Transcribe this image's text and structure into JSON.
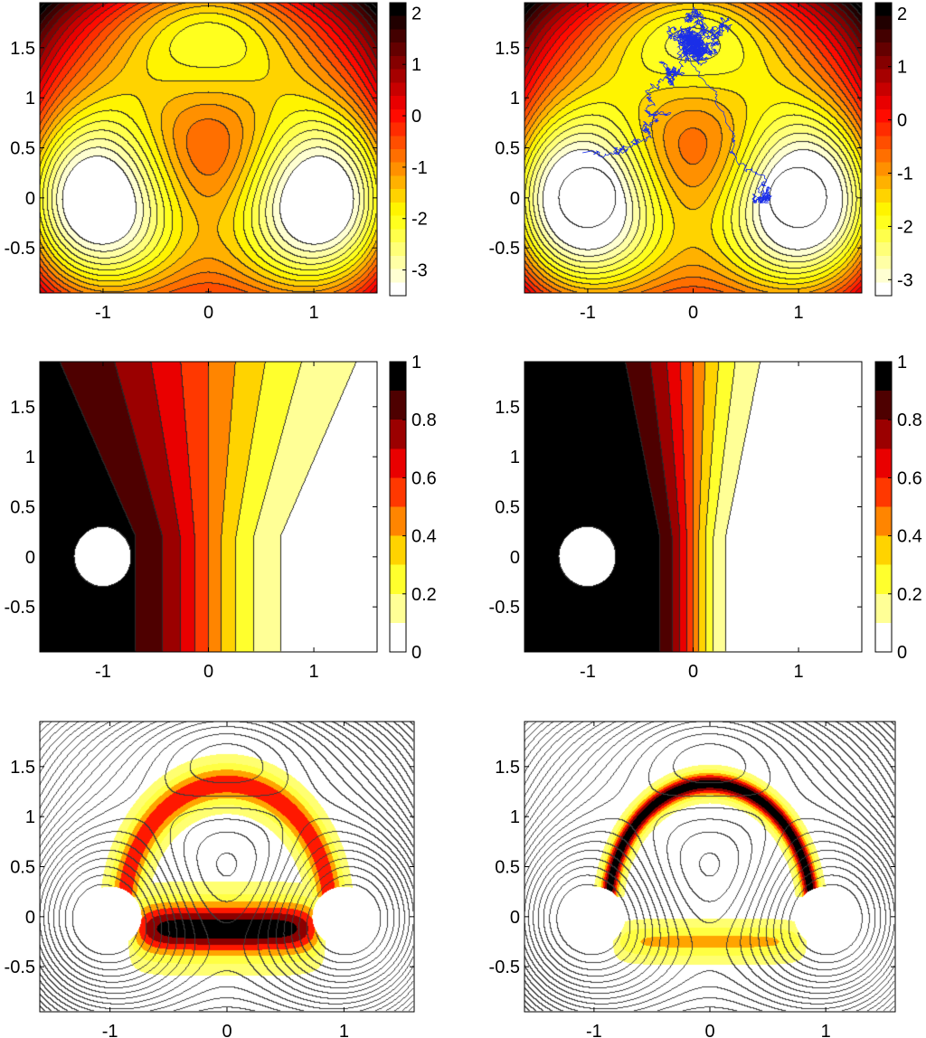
{
  "chart_data": [
    {
      "type": "heatmap",
      "panel": "potential",
      "title": "",
      "xlabel": "",
      "ylabel": "",
      "xlim": [
        -1.6,
        1.6
      ],
      "ylim": [
        -0.95,
        1.95
      ],
      "xticks": [
        -1,
        0,
        1
      ],
      "xtick_labels": [
        "-1",
        "0",
        "1"
      ],
      "yticks": [
        -0.5,
        0,
        0.5,
        1,
        1.5
      ],
      "ytick_labels": [
        "-0.5",
        "0",
        "0.5",
        "1",
        "1.5"
      ],
      "colorbar": {
        "range": [
          -3.5,
          2.2
        ],
        "ticks": [
          -3,
          -2,
          -1,
          0,
          1,
          2
        ],
        "tick_labels": [
          "-3",
          "-2",
          "-1",
          "0",
          "1",
          "2"
        ],
        "colormap": "hot-reversed"
      },
      "features": {
        "wells": [
          [
            -1,
            0
          ],
          [
            1,
            0
          ]
        ],
        "wells_value": -3.5,
        "saddle": [
          0,
          0.5
        ],
        "shallow_well": [
          0,
          1.5
        ]
      },
      "trajectory": false
    },
    {
      "type": "heatmap",
      "panel": "potential-with-path",
      "title": "",
      "xlabel": "",
      "ylabel": "",
      "xlim": [
        -1.6,
        1.6
      ],
      "ylim": [
        -0.95,
        1.95
      ],
      "xticks": [
        -1,
        0,
        1
      ],
      "xtick_labels": [
        "-1",
        "0",
        "1"
      ],
      "yticks": [
        -0.5,
        0,
        0.5,
        1,
        1.5
      ],
      "ytick_labels": [
        "-0.5",
        "0",
        "0.5",
        "1",
        "1.5"
      ],
      "colorbar": {
        "range": [
          -3.3,
          2.2
        ],
        "ticks": [
          -3,
          -2,
          -1,
          0,
          1,
          2
        ],
        "tick_labels": [
          "-3",
          "-2",
          "-1",
          "0",
          "1",
          "2"
        ],
        "colormap": "hot-reversed"
      },
      "features": {
        "wells": [
          [
            -1,
            0
          ],
          [
            1,
            0
          ]
        ],
        "saddle": [
          0,
          0.5
        ],
        "shallow_well": [
          0,
          1.5
        ]
      },
      "trajectory": true,
      "trajectory_color": "#1a2ee8",
      "trajectory_start": [
        -1.05,
        0.45
      ],
      "trajectory_end": [
        0.7,
        -0.02
      ]
    },
    {
      "type": "heatmap",
      "panel": "committor-1",
      "title": "",
      "xlabel": "",
      "ylabel": "",
      "xlim": [
        -1.6,
        1.6
      ],
      "ylim": [
        -0.95,
        1.95
      ],
      "xticks": [
        -1,
        0,
        1
      ],
      "xtick_labels": [
        "-1",
        "0",
        "1"
      ],
      "yticks": [
        -0.5,
        0,
        0.5,
        1,
        1.5
      ],
      "ytick_labels": [
        "-0.5",
        "0",
        "0.5",
        "1",
        "1.5"
      ],
      "colorbar": {
        "range": [
          0,
          1
        ],
        "ticks": [
          0,
          0.2,
          0.4,
          0.6,
          0.8,
          1
        ],
        "tick_labels": [
          "0",
          "0.2",
          "0.4",
          "0.6",
          "0.8",
          "1"
        ],
        "colormap": "hot-reversed"
      },
      "levels": 10,
      "sharpness": 1.0
    },
    {
      "type": "heatmap",
      "panel": "committor-2",
      "title": "",
      "xlabel": "",
      "ylabel": "",
      "xlim": [
        -1.6,
        1.6
      ],
      "ylim": [
        -0.95,
        1.95
      ],
      "xticks": [
        -1,
        0,
        1
      ],
      "xtick_labels": [
        "-1",
        "0",
        "1"
      ],
      "yticks": [
        -0.5,
        0,
        0.5,
        1,
        1.5
      ],
      "ytick_labels": [
        "-0.5",
        "0",
        "0.5",
        "1",
        "1.5"
      ],
      "colorbar": {
        "range": [
          0,
          1
        ],
        "ticks": [
          0,
          0.2,
          0.4,
          0.6,
          0.8,
          1
        ],
        "tick_labels": [
          "0",
          "0.2",
          "0.4",
          "0.6",
          "0.8",
          "1"
        ],
        "colormap": "hot-reversed"
      },
      "levels": 10,
      "sharpness": 2.2
    },
    {
      "type": "heatmap",
      "panel": "reactive-density-1",
      "title": "",
      "xlabel": "",
      "ylabel": "",
      "xlim": [
        -1.6,
        1.6
      ],
      "ylim": [
        -0.95,
        1.95
      ],
      "xticks": [
        -1,
        0,
        1
      ],
      "xtick_labels": [
        "-1",
        "0",
        "1"
      ],
      "yticks": [
        -0.5,
        0,
        0.5,
        1,
        1.5
      ],
      "ytick_labels": [
        "-0.5",
        "0",
        "0.5",
        "1",
        "1.5"
      ],
      "colorbar": null,
      "bands": [
        {
          "shape": "upper-arc",
          "center_radius": 1.05,
          "half_width": 0.1,
          "value": 0.62
        },
        {
          "shape": "lower-channel",
          "center_y": -0.12,
          "half_width": 0.12,
          "value": 0.95
        }
      ]
    },
    {
      "type": "heatmap",
      "panel": "reactive-density-2",
      "title": "",
      "xlabel": "",
      "ylabel": "",
      "xlim": [
        -1.6,
        1.6
      ],
      "ylim": [
        -0.95,
        1.95
      ],
      "xticks": [
        -1,
        0,
        1
      ],
      "xtick_labels": [
        "-1",
        "0",
        "1"
      ],
      "yticks": [
        -0.5,
        0,
        0.5,
        1,
        1.5
      ],
      "ytick_labels": [
        "-0.5",
        "0",
        "0.5",
        "1",
        "1.5"
      ],
      "colorbar": null,
      "bands": [
        {
          "shape": "upper-arc",
          "center_radius": 1.08,
          "half_width": 0.06,
          "value": 0.95
        },
        {
          "shape": "lower-channel",
          "center_y": -0.25,
          "half_width": 0.07,
          "value": 0.38
        }
      ]
    }
  ]
}
